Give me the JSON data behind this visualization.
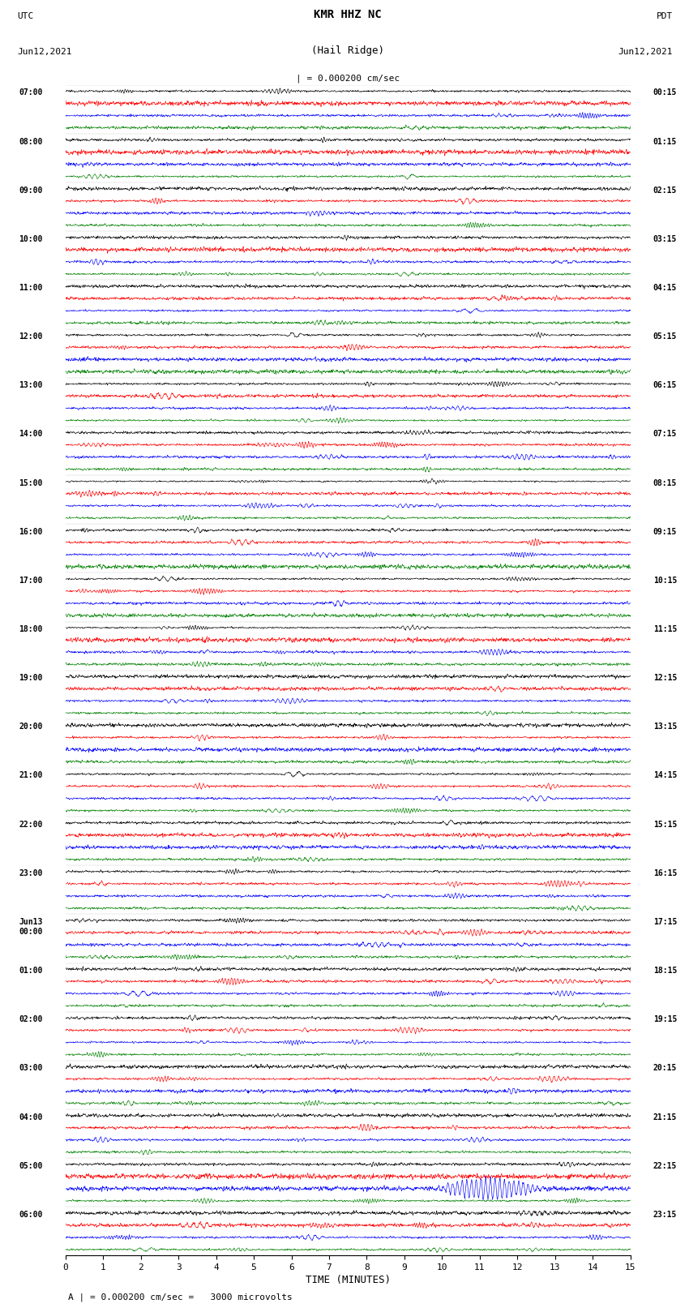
{
  "title_line1": "KMR HHZ NC",
  "title_line2": "(Hail Ridge)",
  "scale_label": "| = 0.000200 cm/sec",
  "footer_label": "A | = 0.000200 cm/sec =   3000 microvolts",
  "left_header_line1": "UTC",
  "left_header_line2": "Jun12,2021",
  "right_header_line1": "PDT",
  "right_header_line2": "Jun12,2021",
  "xlabel": "TIME (MINUTES)",
  "xlim": [
    0,
    15
  ],
  "xticks": [
    0,
    1,
    2,
    3,
    4,
    5,
    6,
    7,
    8,
    9,
    10,
    11,
    12,
    13,
    14,
    15
  ],
  "background_color": "#ffffff",
  "trace_colors": [
    "#000000",
    "#ff0000",
    "#0000ff",
    "#008000"
  ],
  "num_hours": 24,
  "utc_labels": [
    "07:00",
    "08:00",
    "09:00",
    "10:00",
    "11:00",
    "12:00",
    "13:00",
    "14:00",
    "15:00",
    "16:00",
    "17:00",
    "18:00",
    "19:00",
    "20:00",
    "21:00",
    "22:00",
    "23:00",
    "Jun13\n00:00",
    "01:00",
    "02:00",
    "03:00",
    "04:00",
    "05:00",
    "06:00"
  ],
  "pdt_labels": [
    "00:15",
    "01:15",
    "02:15",
    "03:15",
    "04:15",
    "05:15",
    "06:15",
    "07:15",
    "08:15",
    "09:15",
    "10:15",
    "11:15",
    "12:15",
    "13:15",
    "14:15",
    "15:15",
    "16:15",
    "17:15",
    "18:15",
    "19:15",
    "20:15",
    "21:15",
    "22:15",
    "23:15"
  ],
  "big_event_hour": 22,
  "seed": 42
}
